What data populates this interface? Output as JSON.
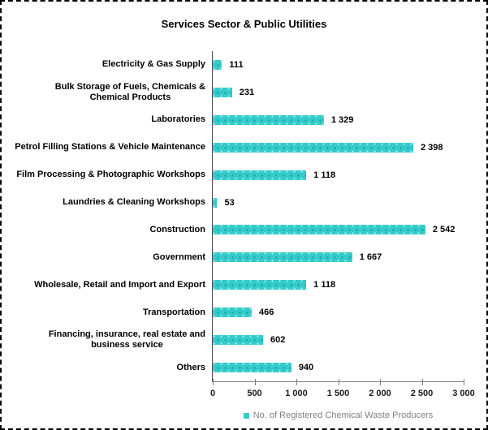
{
  "frame": {
    "background": "#ffffff",
    "border_style": "dashed",
    "border_color": "#000000"
  },
  "chart_data": {
    "type": "bar",
    "orientation": "horizontal",
    "title": "Services Sector & Public Utilities",
    "categories": [
      "Electricity & Gas Supply",
      "Bulk Storage of Fuels, Chemicals &\nChemical Products",
      "Laboratories",
      "Petrol Filling Stations & Vehicle Maintenance",
      "Film Processing & Photographic Workshops",
      "Laundries & Cleaning Workshops",
      "Construction",
      "Government",
      "Wholesale, Retail and Import and Export",
      "Transportation",
      "Financing, insurance, real estate and\nbusiness service",
      "Others"
    ],
    "values": [
      111,
      231,
      1329,
      2398,
      1118,
      53,
      2542,
      1667,
      1118,
      466,
      602,
      940
    ],
    "value_labels": [
      "111",
      "231",
      "1 329",
      "2 398",
      "1 118",
      "53",
      "2 542",
      "1 667",
      "1 118",
      "466",
      "602",
      "940"
    ],
    "xlabel": "",
    "ylabel": "",
    "xlim": [
      0,
      3000
    ],
    "x_ticks": [
      "0",
      "500",
      "1 000",
      "1 500",
      "2 000",
      "2 500",
      "3 000"
    ],
    "grid": false,
    "bar_color": "#33cccc",
    "axis_color": "#808080",
    "legend": {
      "position": "bottom",
      "marker_color": "#33cccc",
      "label": "No. of Registered Chemical Waste Producers"
    }
  }
}
